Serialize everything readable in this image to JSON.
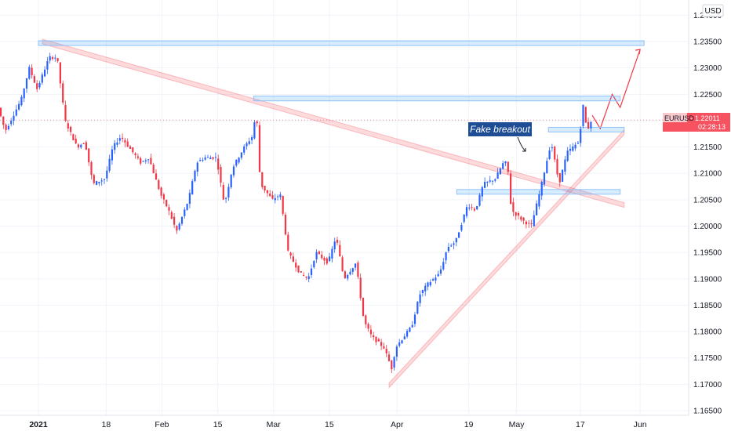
{
  "chart_data": {
    "type": "candlestick",
    "symbol": "EURUSD",
    "currency": "USD",
    "last_price": "1.22011",
    "countdown": "02:28:13",
    "annotation": "Fake breakout",
    "ylim": [
      1.1653,
      1.2411
    ],
    "y_ticks": [
      "1.24000",
      "1.23500",
      "1.23000",
      "1.22500",
      "1.22000",
      "1.21500",
      "1.21000",
      "1.20500",
      "1.20000",
      "1.19500",
      "1.19000",
      "1.18500",
      "1.18000",
      "1.17500",
      "1.17000",
      "1.16500"
    ],
    "x_ticks": [
      {
        "date": "2021-01-01",
        "label": "2021"
      },
      {
        "date": "2021-01-18",
        "label": "18"
      },
      {
        "date": "2021-02-01",
        "label": "Feb"
      },
      {
        "date": "2021-02-15",
        "label": "15"
      },
      {
        "date": "2021-03-01",
        "label": "Mar"
      },
      {
        "date": "2021-03-15",
        "label": "15"
      },
      {
        "date": "2021-04-01",
        "label": "Apr"
      },
      {
        "date": "2021-04-19",
        "label": "19"
      },
      {
        "date": "2021-05-01",
        "label": "May"
      },
      {
        "date": "2021-05-17",
        "label": "17"
      },
      {
        "date": "2021-06-01",
        "label": "Jun"
      }
    ],
    "price_path": [
      [
        "2020-12-22",
        1.223
      ],
      [
        "2020-12-24",
        1.218
      ],
      [
        "2020-12-28",
        1.224
      ],
      [
        "2020-12-30",
        1.23
      ],
      [
        "2021-01-01",
        1.226
      ],
      [
        "2021-01-04",
        1.232
      ],
      [
        "2021-01-06",
        1.232
      ],
      [
        "2021-01-08",
        1.22
      ],
      [
        "2021-01-11",
        1.215
      ],
      [
        "2021-01-13",
        1.216
      ],
      [
        "2021-01-15",
        1.208
      ],
      [
        "2021-01-18",
        1.209
      ],
      [
        "2021-01-20",
        1.215
      ],
      [
        "2021-01-22",
        1.217
      ],
      [
        "2021-01-25",
        1.214
      ],
      [
        "2021-01-27",
        1.212
      ],
      [
        "2021-01-29",
        1.213
      ],
      [
        "2021-02-01",
        1.206
      ],
      [
        "2021-02-03",
        1.203
      ],
      [
        "2021-02-05",
        1.199
      ],
      [
        "2021-02-08",
        1.205
      ],
      [
        "2021-02-10",
        1.212
      ],
      [
        "2021-02-12",
        1.213
      ],
      [
        "2021-02-15",
        1.213
      ],
      [
        "2021-02-17",
        1.204
      ],
      [
        "2021-02-19",
        1.211
      ],
      [
        "2021-02-22",
        1.215
      ],
      [
        "2021-02-24",
        1.217
      ],
      [
        "2021-02-25",
        1.222
      ],
      [
        "2021-02-26",
        1.208
      ],
      [
        "2021-03-01",
        1.205
      ],
      [
        "2021-03-03",
        1.206
      ],
      [
        "2021-03-05",
        1.195
      ],
      [
        "2021-03-08",
        1.191
      ],
      [
        "2021-03-10",
        1.19
      ],
      [
        "2021-03-12",
        1.195
      ],
      [
        "2021-03-15",
        1.193
      ],
      [
        "2021-03-17",
        1.198
      ],
      [
        "2021-03-19",
        1.19
      ],
      [
        "2021-03-22",
        1.193
      ],
      [
        "2021-03-24",
        1.182
      ],
      [
        "2021-03-26",
        1.179
      ],
      [
        "2021-03-29",
        1.177
      ],
      [
        "2021-03-31",
        1.173
      ],
      [
        "2021-04-01",
        1.177
      ],
      [
        "2021-04-05",
        1.181
      ],
      [
        "2021-04-07",
        1.187
      ],
      [
        "2021-04-09",
        1.189
      ],
      [
        "2021-04-12",
        1.191
      ],
      [
        "2021-04-14",
        1.196
      ],
      [
        "2021-04-16",
        1.197
      ],
      [
        "2021-04-19",
        1.204
      ],
      [
        "2021-04-21",
        1.203
      ],
      [
        "2021-04-23",
        1.208
      ],
      [
        "2021-04-26",
        1.209
      ],
      [
        "2021-04-28",
        1.212
      ],
      [
        "2021-04-29",
        1.212
      ],
      [
        "2021-04-30",
        1.203
      ],
      [
        "2021-05-03",
        1.201
      ],
      [
        "2021-05-05",
        1.2
      ],
      [
        "2021-05-07",
        1.206
      ],
      [
        "2021-05-10",
        1.216
      ],
      [
        "2021-05-12",
        1.208
      ],
      [
        "2021-05-14",
        1.214
      ],
      [
        "2021-05-17",
        1.216
      ],
      [
        "2021-05-18",
        1.223
      ],
      [
        "2021-05-19",
        1.218
      ],
      [
        "2021-05-20",
        1.22
      ]
    ]
  }
}
